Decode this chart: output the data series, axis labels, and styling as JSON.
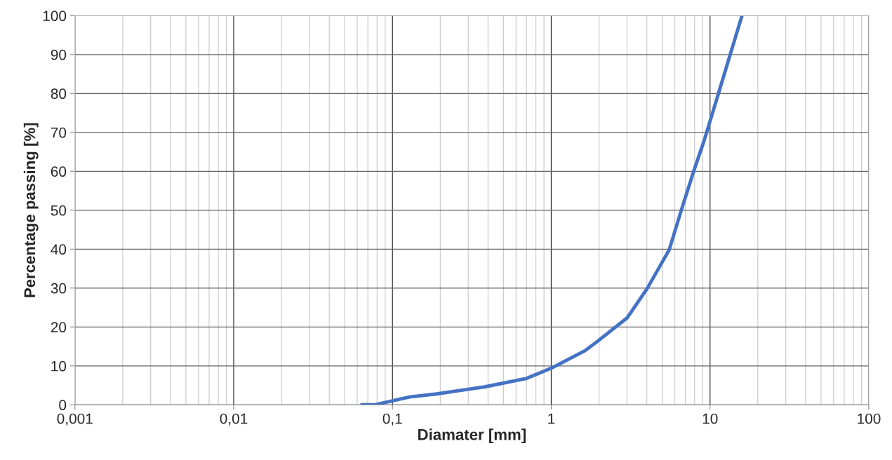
{
  "chart_data": {
    "type": "line",
    "xlabel": "Diamater [mm]",
    "ylabel": "Percentage passing [%]",
    "log": "x",
    "grid": true,
    "marker": "none",
    "line_style": "solid",
    "xlim": [
      0.001,
      100
    ],
    "xticks": [
      {
        "value": 0.001,
        "label": "0,001"
      },
      {
        "value": 0.01,
        "label": "0,01"
      },
      {
        "value": 0.1,
        "label": "0,1"
      },
      1,
      10,
      100
    ],
    "ylim": [
      0,
      100
    ],
    "yticks": [
      0,
      10,
      20,
      30,
      40,
      50,
      60,
      70,
      80,
      90,
      100
    ],
    "series": [
      {
        "color": "#4472c4",
        "x": [
          0.064,
          0.077,
          0.1,
          0.128,
          0.19,
          0.3,
          0.38,
          0.7,
          1,
          1.63,
          1.94,
          3.0,
          4.02,
          5.53,
          6.58,
          7.89,
          9.2,
          11.3,
          13.4,
          15.9
        ],
        "values": [
          0,
          0,
          1,
          2,
          2.8,
          4,
          4.6,
          6.8,
          9.4,
          13.9,
          16.2,
          22.3,
          29.9,
          39.8,
          49.9,
          60,
          68,
          80,
          90,
          100
        ]
      }
    ]
  }
}
